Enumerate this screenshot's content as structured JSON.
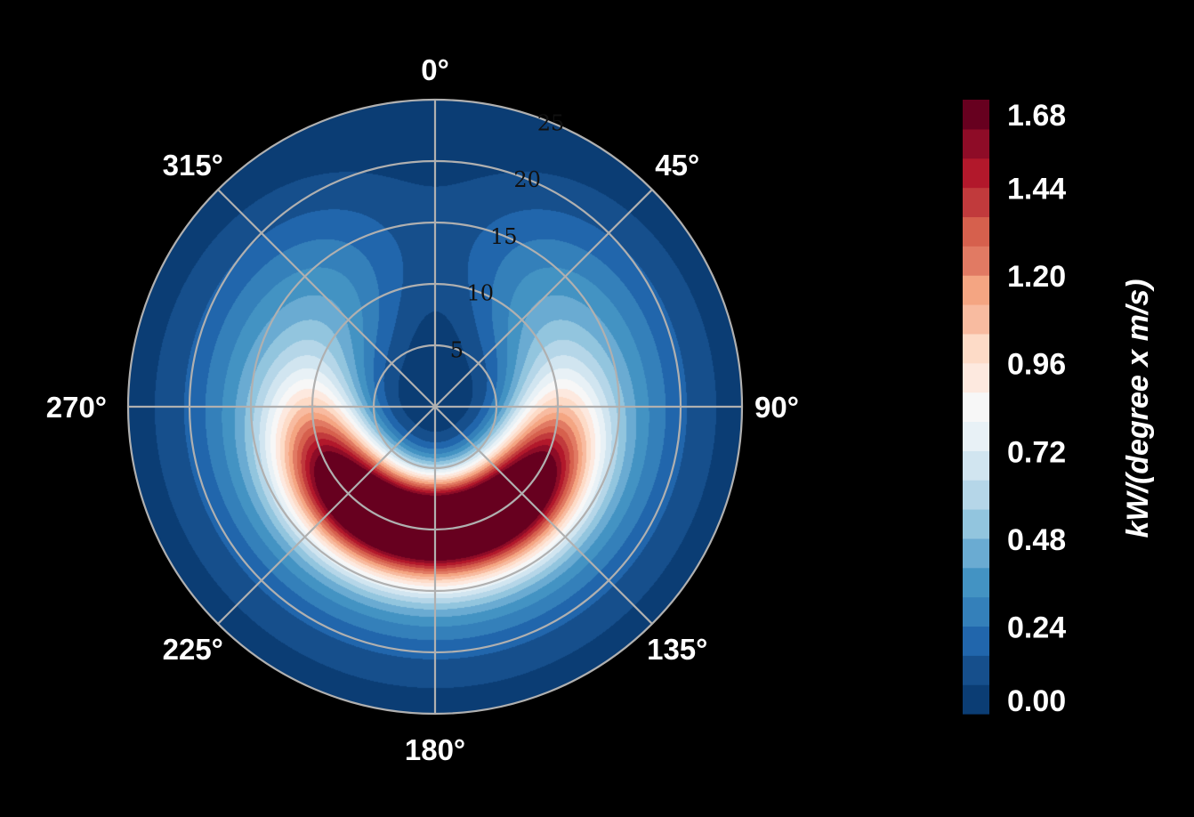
{
  "chart_data": {
    "type": "heatmap",
    "projection": "polar",
    "theta_zero": "top",
    "theta_direction": "clockwise",
    "angle_ticks": [
      "0°",
      "45°",
      "90°",
      "135°",
      "180°",
      "225°",
      "270°",
      "315°"
    ],
    "radial_ticks": [
      5,
      10,
      15,
      20,
      25
    ],
    "radial_tick_labels": [
      "5",
      "10",
      "15",
      "20",
      "25"
    ],
    "rmax": 25,
    "grid": true,
    "colorbar": {
      "label": "kW/(degree x m/s)",
      "range": [
        0.0,
        1.68
      ],
      "levels": 18,
      "tick_values": [
        0.0,
        0.24,
        0.48,
        0.72,
        0.96,
        1.2,
        1.44,
        1.68
      ],
      "tick_labels": [
        "0.00",
        "0.24",
        "0.48",
        "0.72",
        "0.96",
        "1.20",
        "1.44",
        "1.68"
      ],
      "colormap": "RdBu_r",
      "colors": [
        "#0b3d74",
        "#164f8c",
        "#2166ac",
        "#3480ba",
        "#4393c3",
        "#6aabd2",
        "#92c5de",
        "#b5d6e8",
        "#d1e5f0",
        "#e8f1f6",
        "#f7f7f7",
        "#fde9df",
        "#fddbc7",
        "#f8bba0",
        "#f4a582",
        "#e17a63",
        "#d6604d",
        "#c13a3c",
        "#b2182b",
        "#8e0c27",
        "#67001f"
      ]
    },
    "lobes": [
      {
        "center_angle_deg": 140,
        "center_radius": 9.5,
        "peak_value": 1.66,
        "radial_sigma": 3.1,
        "angular_sigma_deg": 40
      },
      {
        "center_angle_deg": 220,
        "center_radius": 9.5,
        "peak_value": 1.66,
        "radial_sigma": 3.1,
        "angular_sigma_deg": 40
      }
    ]
  }
}
